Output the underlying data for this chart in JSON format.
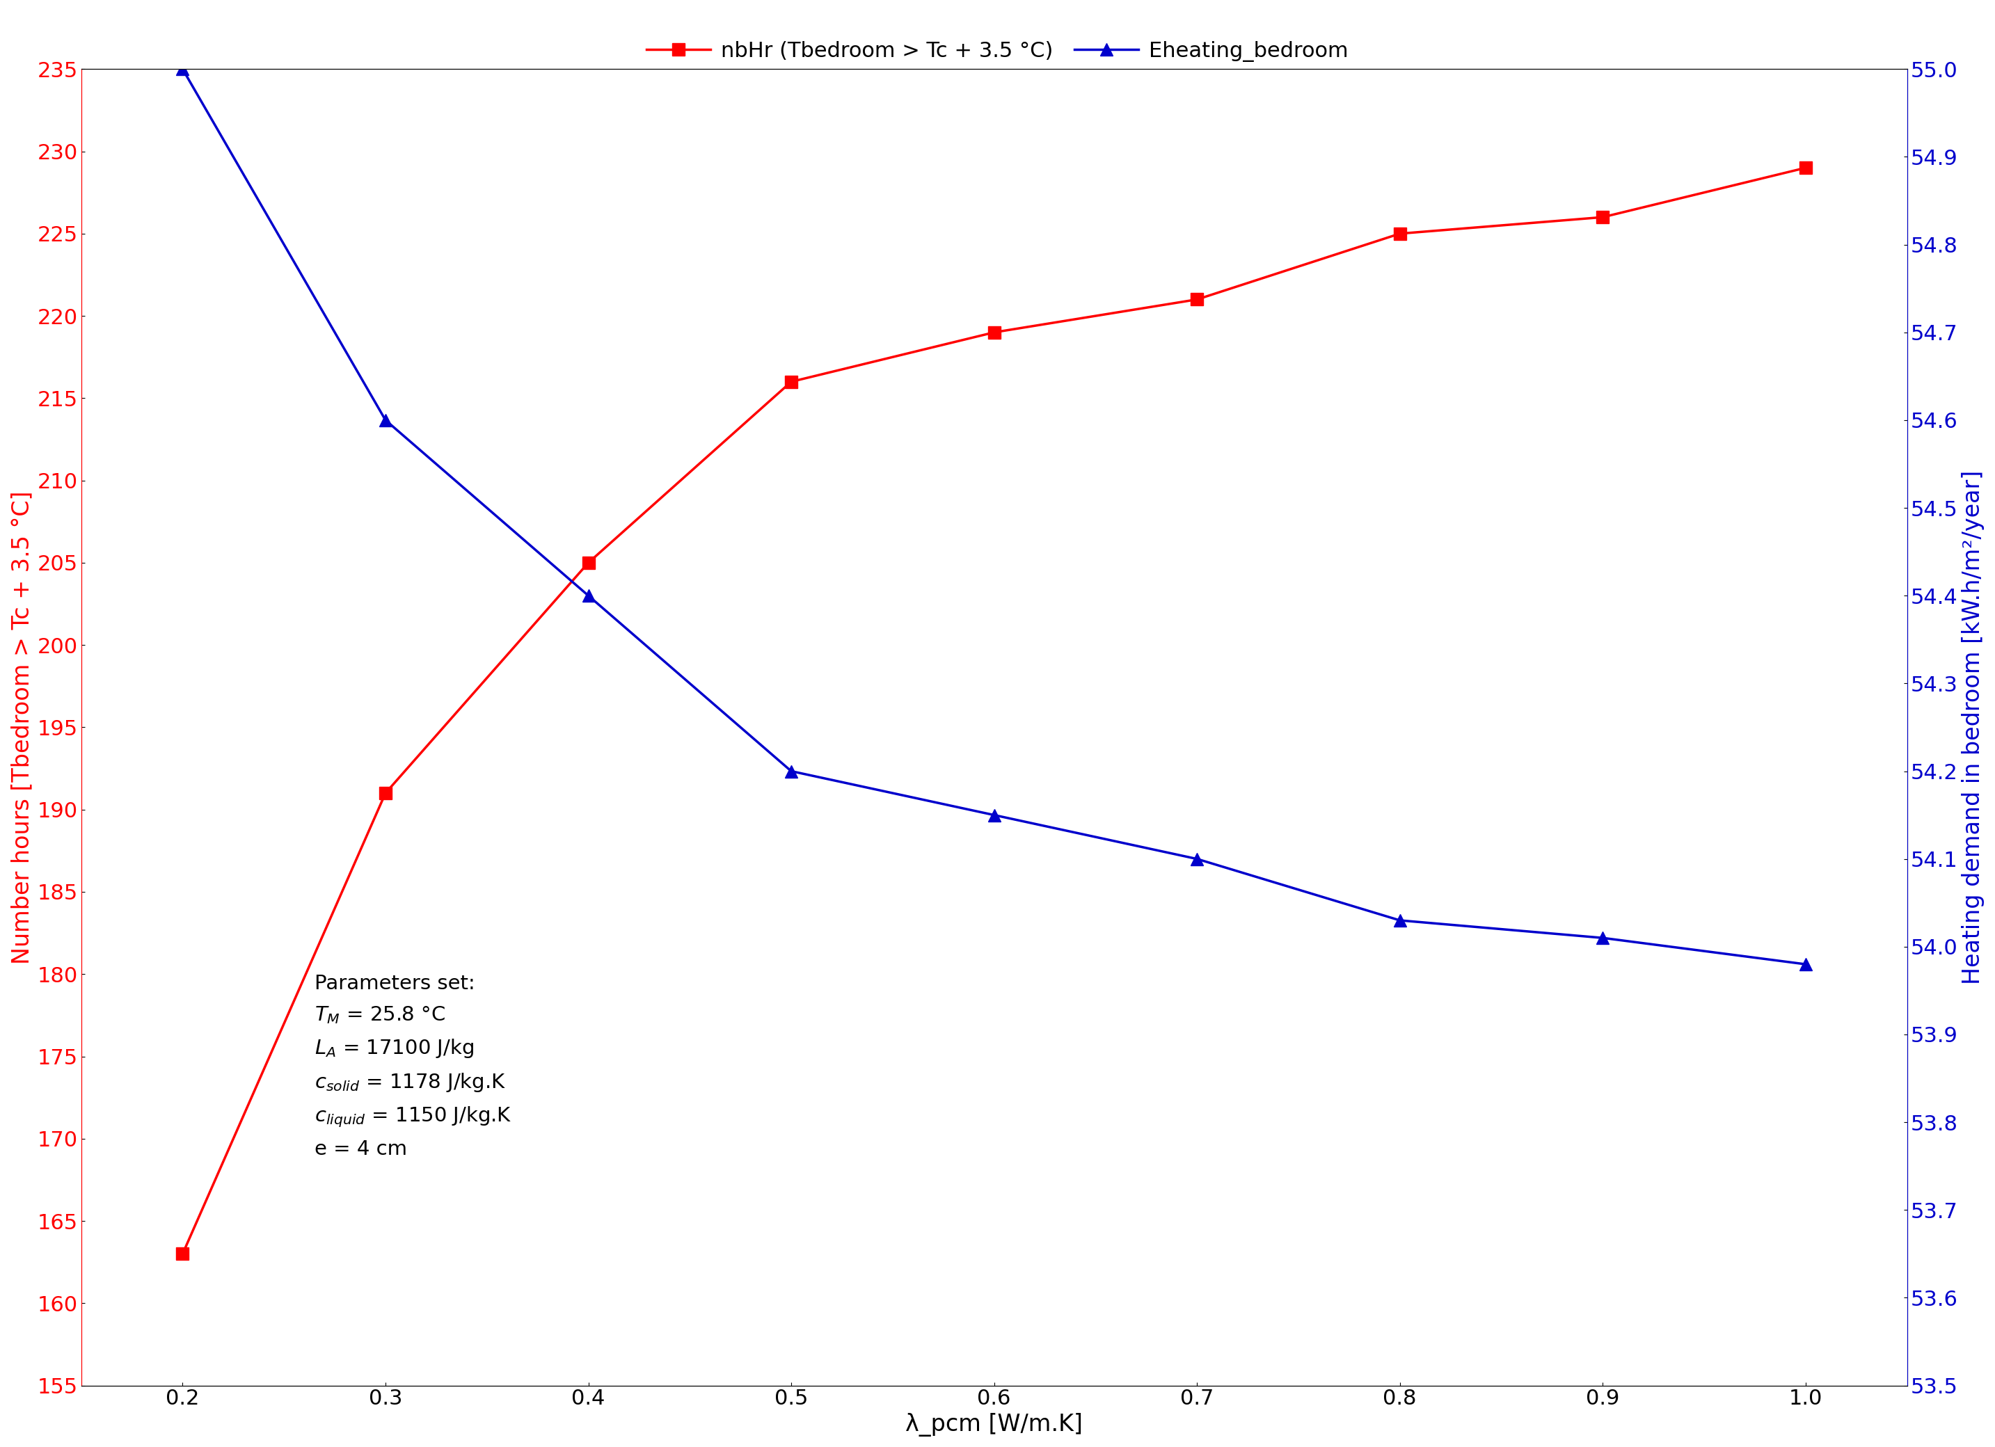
{
  "x": [
    0.2,
    0.3,
    0.4,
    0.5,
    0.6,
    0.7,
    0.8,
    0.9,
    1.0
  ],
  "nbHr": [
    163,
    191,
    205,
    216,
    219,
    221,
    225,
    226,
    229
  ],
  "Eheating": [
    55.0,
    54.6,
    54.4,
    54.2,
    54.15,
    54.1,
    54.03,
    54.01,
    53.98
  ],
  "red_color": "#FF0000",
  "blue_color": "#0000CC",
  "xlabel": "λ_pcm [W/m.K]",
  "ylabel_left": "Number hours [Tbedroom > Tc + 3.5 °C]",
  "ylabel_right": "Heating demand in bedroom [kW.h/m²/year]",
  "legend1": "nbHr (Tbedroom > Tc + 3.5 °C)",
  "legend2": "Eheating_bedroom",
  "ylim_left": [
    155,
    235
  ],
  "ylim_right": [
    53.5,
    55.0
  ],
  "yticks_left": [
    155,
    160,
    165,
    170,
    175,
    180,
    185,
    190,
    195,
    200,
    205,
    210,
    215,
    220,
    225,
    230,
    235
  ],
  "yticks_right": [
    53.5,
    53.6,
    53.7,
    53.8,
    53.9,
    54.0,
    54.1,
    54.2,
    54.3,
    54.4,
    54.5,
    54.6,
    54.7,
    54.8,
    54.9,
    55.0
  ],
  "xticks": [
    0.2,
    0.3,
    0.4,
    0.5,
    0.6,
    0.7,
    0.8,
    0.9,
    1.0
  ],
  "xlim": [
    0.15,
    1.05
  ],
  "axis_fontsize": 24,
  "tick_fontsize": 22,
  "legend_fontsize": 22,
  "annotation_fontsize": 21,
  "linewidth": 2.5,
  "markersize": 13
}
